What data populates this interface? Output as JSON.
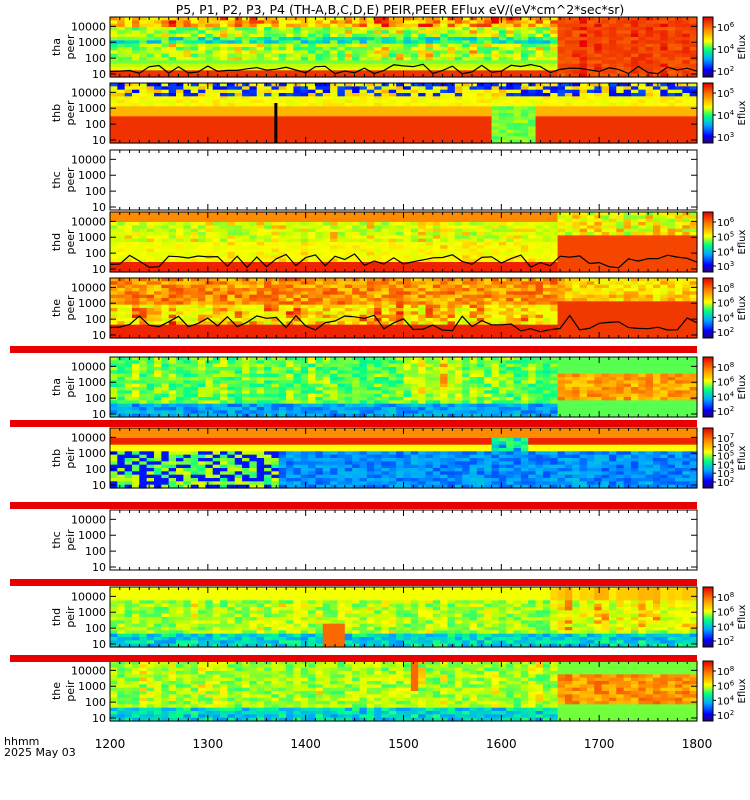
{
  "title": "P5, P1, P2, P3, P4 (TH-A,B,C,D,E) PEIR,PEER EFlux eV/(eV*cm^2*sec*sr)",
  "footer": {
    "label": "hhmm",
    "date": "2025 May 03"
  },
  "colors": {
    "saturated_red": "#e80000",
    "black": "#000000"
  },
  "chart_data": {
    "type": "heatmap",
    "x": {
      "ticks": [
        1200,
        1300,
        1400,
        1500,
        1600,
        1700,
        1800
      ],
      "tick_labels": [
        "1200",
        "1300",
        "1400",
        "1500",
        "1600",
        "1700",
        "1800"
      ],
      "range": [
        1200,
        1800
      ]
    },
    "panels": [
      {
        "label1": "tha",
        "label2": "peer",
        "style": "peer_a",
        "yticks": [
          "10000",
          "1000",
          "100",
          "10"
        ],
        "cbar": [
          "10^6",
          "10^4",
          "10^2"
        ],
        "cbar_label": "Eflux"
      },
      {
        "label1": "thb",
        "label2": "peer",
        "style": "peer_b",
        "yticks": [
          "10000",
          "1000",
          "100",
          "10"
        ],
        "cbar": [
          "10^5",
          "10^4",
          "10^3"
        ],
        "cbar_label": "Eflux"
      },
      {
        "label1": "thc",
        "label2": "peer",
        "style": "empty",
        "yticks": [
          "10000",
          "1000",
          "100",
          "10"
        ],
        "cbar": [],
        "cbar_label": ""
      },
      {
        "label1": "thd",
        "label2": "peer",
        "style": "peer_d",
        "yticks": [
          "10000",
          "1000",
          "100",
          "10"
        ],
        "cbar": [
          "10^6",
          "10^5",
          "10^4",
          "10^3"
        ],
        "cbar_label": "Eflux"
      },
      {
        "label1": "the",
        "label2": "peer",
        "style": "peer_e",
        "yticks": [
          "10000",
          "1000",
          "100",
          "10"
        ],
        "cbar": [
          "10^8",
          "10^6",
          "10^4",
          "10^2"
        ],
        "cbar_label": "Eflux"
      },
      {
        "label1": "tha",
        "label2": "peir",
        "style": "peir_a",
        "yticks": [
          "10000",
          "1000",
          "100",
          "10"
        ],
        "cbar": [
          "10^8",
          "10^6",
          "10^4",
          "10^2"
        ],
        "cbar_label": "Eflux"
      },
      {
        "label1": "thb",
        "label2": "peir",
        "style": "peir_b",
        "yticks": [
          "10000",
          "1000",
          "100",
          "10"
        ],
        "cbar": [
          "10^7",
          "10^6",
          "10^5",
          "10^4",
          "10^3",
          "10^2"
        ],
        "cbar_label": "Eflux"
      },
      {
        "label1": "thc",
        "label2": "peir",
        "style": "empty",
        "yticks": [
          "10000",
          "1000",
          "100",
          "10"
        ],
        "cbar": [],
        "cbar_label": ""
      },
      {
        "label1": "thd",
        "label2": "peir",
        "style": "peir_d",
        "yticks": [
          "10000",
          "1000",
          "100",
          "10"
        ],
        "cbar": [
          "10^8",
          "10^6",
          "10^4",
          "10^2"
        ],
        "cbar_label": "Eflux"
      },
      {
        "label1": "the",
        "label2": "peir",
        "style": "peir_e",
        "yticks": [
          "10000",
          "1000",
          "100",
          "10"
        ],
        "cbar": [
          "10^8",
          "10^6",
          "10^4",
          "10^2"
        ],
        "cbar_label": "Eflux"
      }
    ]
  }
}
